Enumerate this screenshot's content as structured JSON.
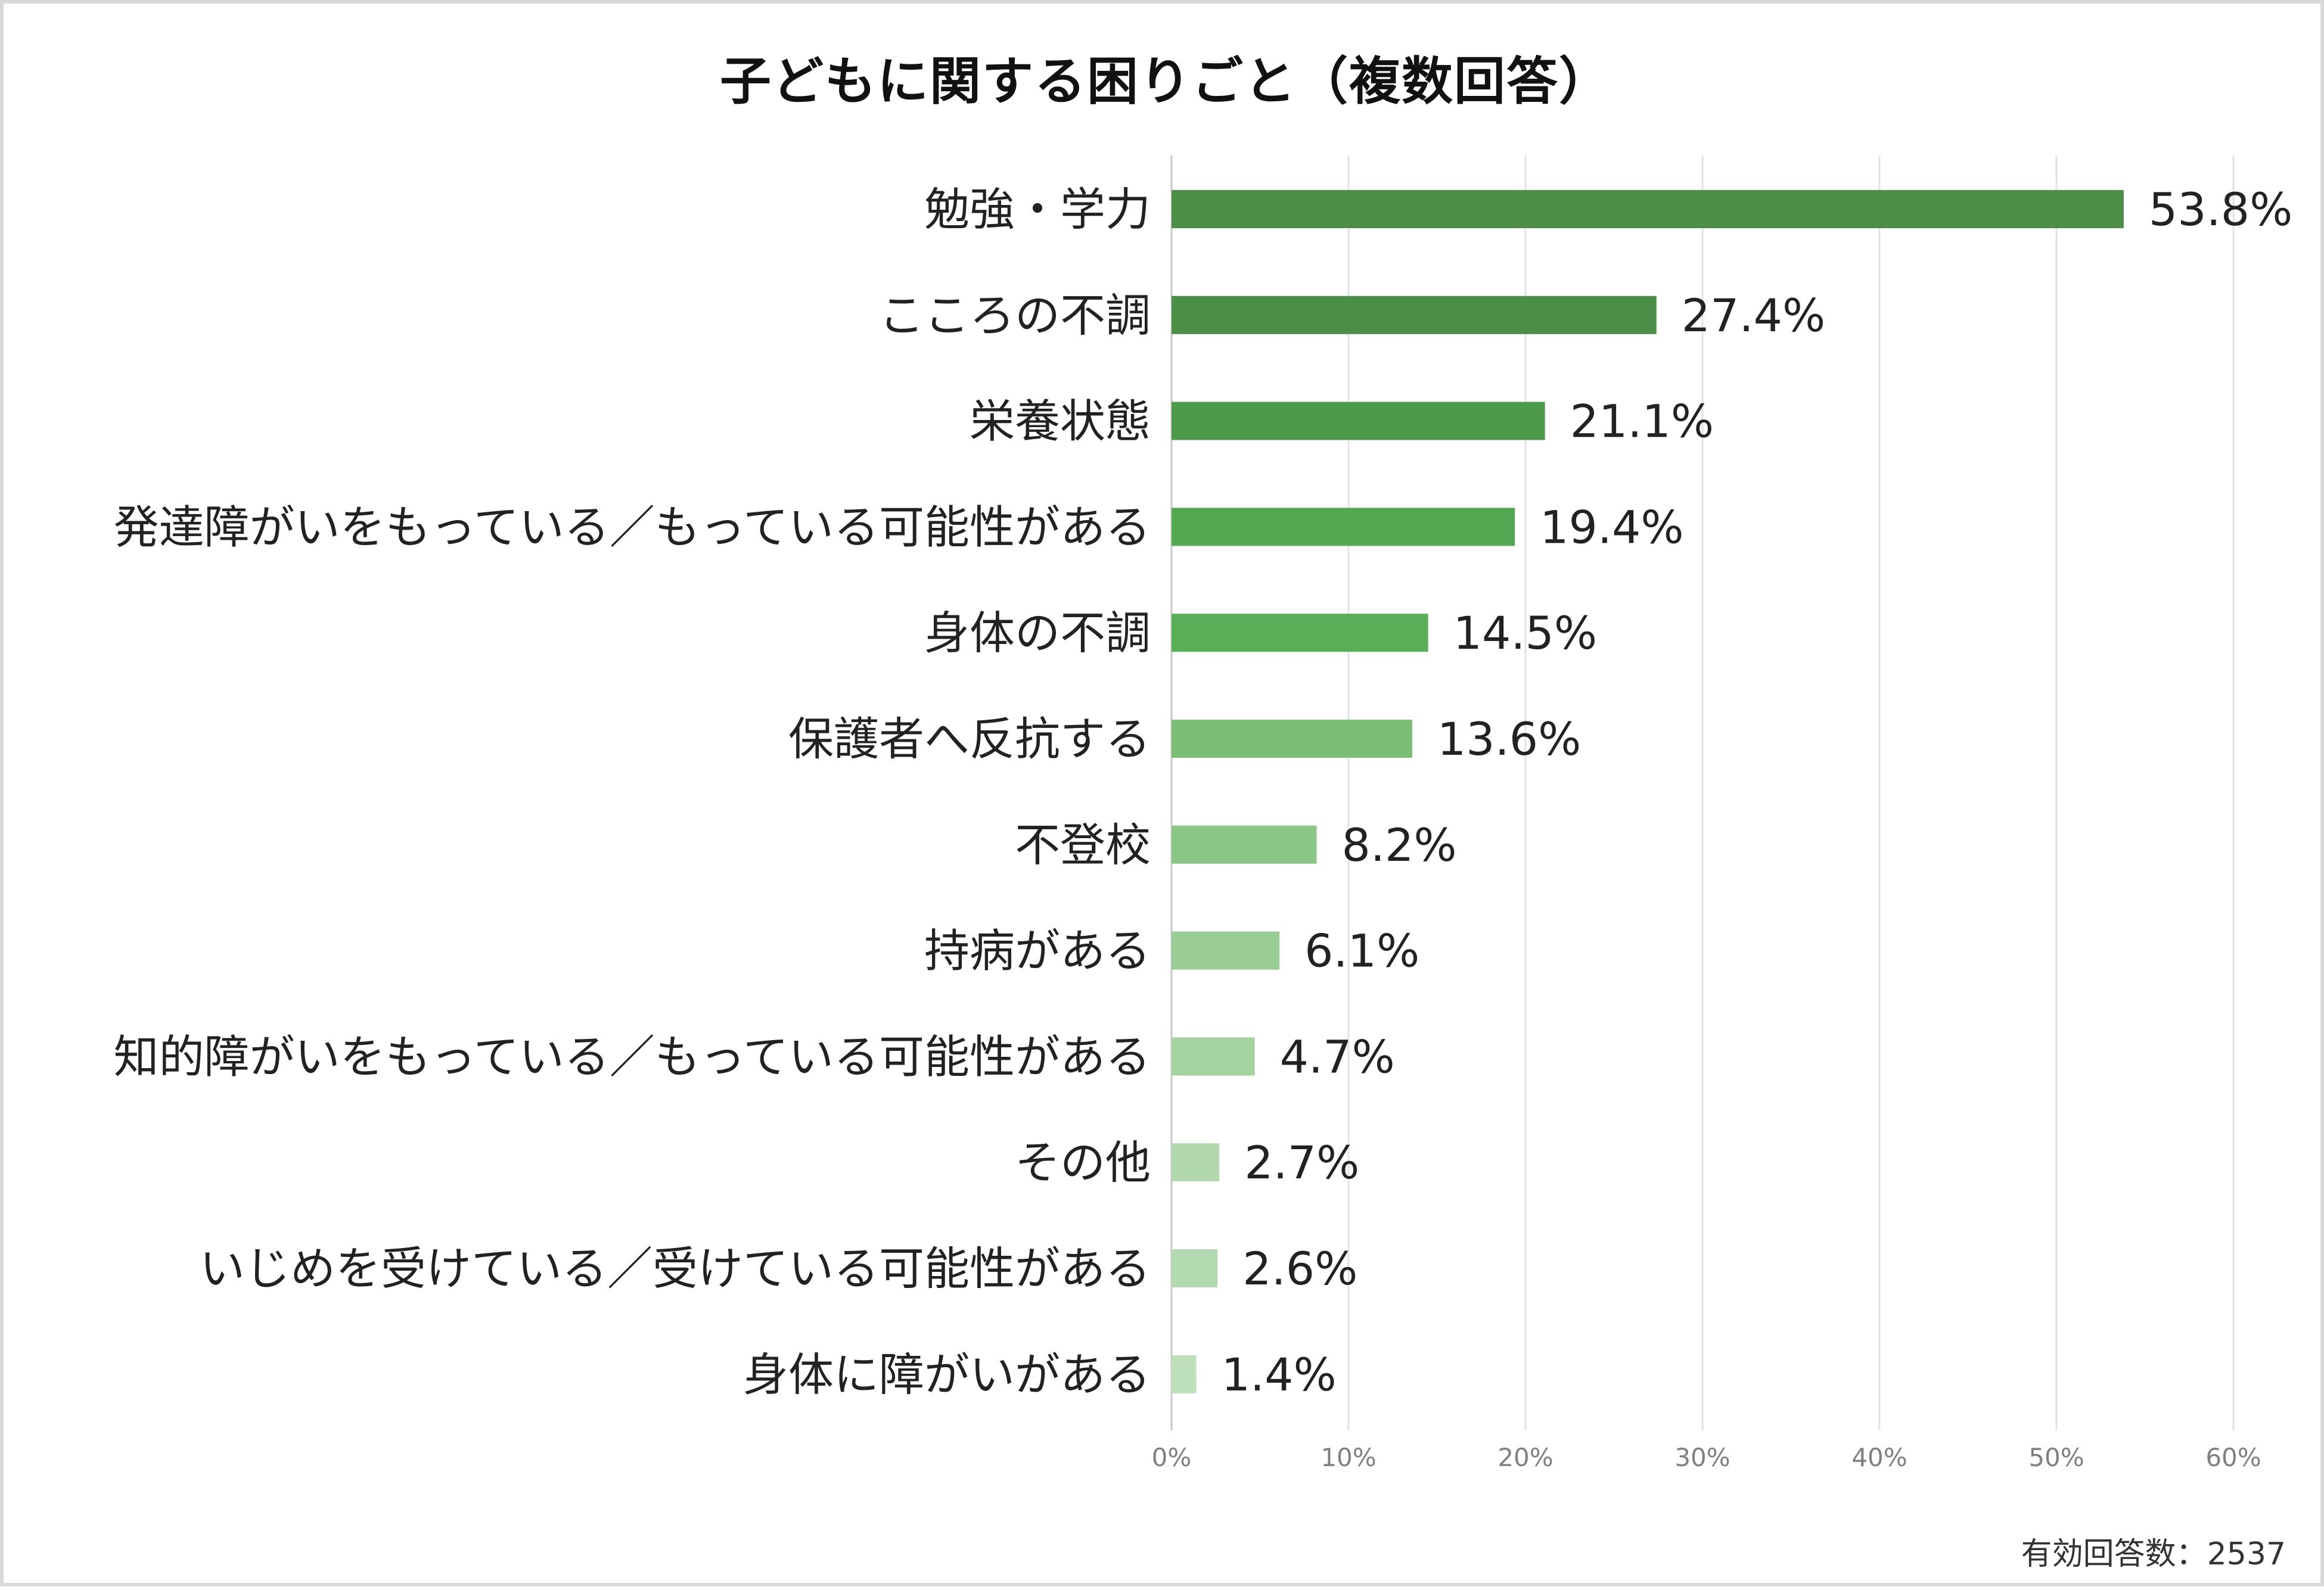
{
  "chart_data": {
    "type": "bar",
    "orientation": "horizontal",
    "title": "子どもに関する困りごと（複数回答）",
    "categories": [
      "勉強・学力",
      "こころの不調",
      "栄養状態",
      "発達障がいをもっている／もっている可能性がある",
      "身体の不調",
      "保護者へ反抗する",
      "不登校",
      "持病がある",
      "知的障がいをもっている／もっている可能性がある",
      "その他",
      "いじめを受けている／受けている可能性がある",
      "身体に障がいがある"
    ],
    "values": [
      53.8,
      27.4,
      21.1,
      19.4,
      14.5,
      13.6,
      8.2,
      6.1,
      4.7,
      2.7,
      2.6,
      1.4
    ],
    "value_labels": [
      "53.8%",
      "27.4%",
      "21.1%",
      "19.4%",
      "14.5%",
      "13.6%",
      "8.2%",
      "6.1%",
      "4.7%",
      "2.7%",
      "2.6%",
      "1.4%"
    ],
    "bar_colors": [
      "#4a8e48",
      "#4a8e48",
      "#4e9a4b",
      "#53a851",
      "#5aae57",
      "#7cbd78",
      "#8ac685",
      "#99cd94",
      "#a5d3a0",
      "#b1d9ad",
      "#b2dab0",
      "#bde0ba"
    ],
    "xlim": [
      0,
      60
    ],
    "xticks": [
      0,
      10,
      20,
      30,
      40,
      50,
      60
    ],
    "xtick_labels": [
      "0%",
      "10%",
      "20%",
      "30%",
      "40%",
      "50%",
      "60%"
    ],
    "grid": true,
    "legend": "none"
  },
  "footnote": "有効回答数：2537"
}
